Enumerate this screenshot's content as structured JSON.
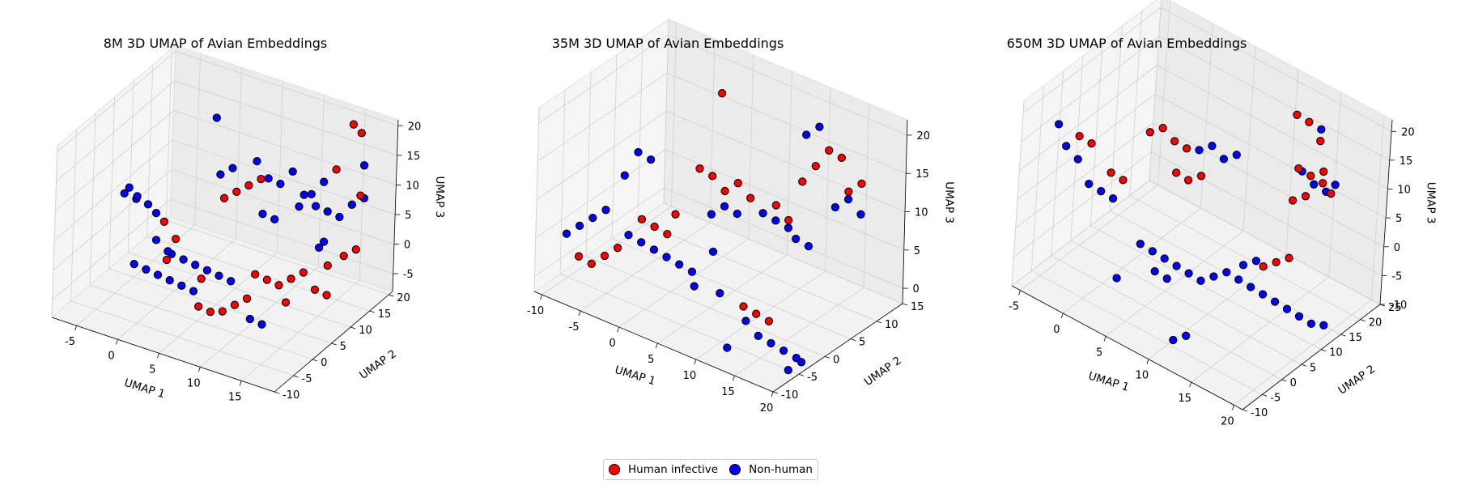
{
  "chart_data": [
    {
      "type": "scatter",
      "title": "8M 3D UMAP of Avian Embeddings",
      "xlabel": "UMAP 1",
      "ylabel": "UMAP 2",
      "zlabel": "UMAP 3",
      "xlim": [
        -8,
        19
      ],
      "ylim": [
        -10,
        21
      ],
      "zlim": [
        -8,
        21
      ],
      "xticks": [
        -5,
        0,
        5,
        10,
        15
      ],
      "yticks": [
        -10,
        -5,
        0,
        5,
        10,
        15,
        20
      ],
      "zticks": [
        -5,
        0,
        5,
        10,
        15,
        20
      ],
      "grid": true,
      "series": [
        {
          "name": "Human infective",
          "color": "#ff0000",
          "points": [
            [
              2,
              -3,
              9
            ],
            [
              3,
              -2,
              6
            ],
            [
              6,
              4,
              11
            ],
            [
              7,
              5,
              12
            ],
            [
              8,
              6,
              13
            ],
            [
              9,
              7,
              14
            ],
            [
              15,
              18,
              20
            ],
            [
              16,
              18,
              19
            ],
            [
              14,
              16,
              13
            ],
            [
              10,
              4,
              0
            ],
            [
              11,
              5,
              -1
            ],
            [
              12,
              6,
              -2
            ],
            [
              13,
              7,
              -1
            ],
            [
              14,
              8,
              0
            ],
            [
              16,
              10,
              1
            ],
            [
              17,
              12,
              2
            ],
            [
              18,
              13,
              3
            ],
            [
              15,
              9,
              -3
            ],
            [
              16,
              10,
              -4
            ],
            [
              6,
              -2,
              -4
            ],
            [
              7,
              -1,
              -5
            ],
            [
              8,
              0,
              -5
            ],
            [
              9,
              1,
              -4
            ],
            [
              10,
              2,
              -3
            ],
            [
              17,
              16,
              10
            ],
            [
              2,
              -2,
              2
            ],
            [
              4,
              3,
              -3
            ],
            [
              12,
              8,
              -6
            ]
          ]
        },
        {
          "name": "Non-human",
          "color": "#0000ff",
          "points": [
            [
              -2,
              -5,
              13
            ],
            [
              -1,
              -4,
              12
            ],
            [
              0,
              -3,
              11
            ],
            [
              1,
              -3,
              10
            ],
            [
              -1,
              -6,
              15
            ],
            [
              0,
              -6,
              14
            ],
            [
              2,
              -5,
              7
            ],
            [
              3,
              -4,
              5
            ],
            [
              3,
              -3,
              4
            ],
            [
              4,
              -2,
              3
            ],
            [
              5,
              -1,
              2
            ],
            [
              6,
              0,
              1
            ],
            [
              7,
              1,
              0
            ],
            [
              8,
              2,
              -1
            ],
            [
              5,
              5,
              14
            ],
            [
              6,
              6,
              15
            ],
            [
              8,
              8,
              16
            ],
            [
              9,
              9,
              13
            ],
            [
              10,
              10,
              12
            ],
            [
              11,
              11,
              14
            ],
            [
              12,
              12,
              10
            ],
            [
              13,
              13,
              8
            ],
            [
              14,
              14,
              7
            ],
            [
              15,
              15,
              6
            ],
            [
              16,
              16,
              8
            ],
            [
              17,
              17,
              9
            ],
            [
              13,
              15,
              11
            ],
            [
              12,
              14,
              9
            ],
            [
              11,
              13,
              7
            ],
            [
              9,
              11,
              5
            ],
            [
              8,
              10,
              6
            ],
            [
              16,
              19,
              13
            ],
            [
              3,
              8,
              21
            ],
            [
              -1,
              -4,
              1
            ],
            [
              0,
              -3,
              0
            ],
            [
              1,
              -2,
              -1
            ],
            [
              2,
              -1,
              -2
            ],
            [
              3,
              0,
              -3
            ],
            [
              4,
              1,
              -4
            ],
            [
              10,
              3,
              -7
            ],
            [
              11,
              4,
              -8
            ],
            [
              15,
              11,
              4
            ],
            [
              14,
              12,
              2
            ]
          ]
        }
      ]
    },
    {
      "type": "scatter",
      "title": "35M 3D UMAP of Avian Embeddings",
      "xlabel": "UMAP 1",
      "ylabel": "UMAP 2",
      "zlabel": "UMAP 3",
      "xlim": [
        -11,
        20
      ],
      "ylim": [
        -10,
        15
      ],
      "zlim": [
        -2,
        22
      ],
      "xticks": [
        -10,
        -5,
        0,
        5,
        10,
        15,
        20
      ],
      "yticks": [
        -10,
        -5,
        0,
        5,
        10,
        15
      ],
      "zticks": [
        0,
        5,
        10,
        15,
        20
      ],
      "grid": true,
      "series": [
        {
          "name": "Human infective",
          "color": "#ff0000",
          "points": [
            [
              -8,
              -6,
              2
            ],
            [
              -7,
              -5,
              1
            ],
            [
              -6,
              -4,
              2
            ],
            [
              -5,
              -3,
              3
            ],
            [
              -2,
              -3,
              8
            ],
            [
              -1,
              -2,
              7
            ],
            [
              0,
              -1,
              6
            ],
            [
              1,
              -1,
              9
            ],
            [
              2,
              2,
              14
            ],
            [
              3,
              3,
              13
            ],
            [
              4,
              4,
              11
            ],
            [
              5,
              5,
              12
            ],
            [
              6,
              6,
              10
            ],
            [
              8,
              8,
              9
            ],
            [
              10,
              10,
              12
            ],
            [
              11,
              11,
              14
            ],
            [
              12,
              12,
              16
            ],
            [
              13,
              13,
              15
            ],
            [
              14,
              13,
              11
            ],
            [
              15,
              14,
              12
            ],
            [
              12,
              -4,
              3
            ],
            [
              13,
              -3,
              2
            ],
            [
              14,
              -2,
              1
            ],
            [
              2,
              6,
              22
            ],
            [
              9,
              9,
              7
            ]
          ]
        },
        {
          "name": "Non-human",
          "color": "#0000ff",
          "points": [
            [
              -9,
              -7,
              5
            ],
            [
              -8,
              -6,
              6
            ],
            [
              -7,
              -5,
              7
            ],
            [
              -6,
              -4,
              8
            ],
            [
              -3,
              -4,
              6
            ],
            [
              -2,
              -3,
              5
            ],
            [
              -1,
              -2,
              4
            ],
            [
              0,
              -1,
              3
            ],
            [
              1,
              0,
              2
            ],
            [
              2,
              1,
              1
            ],
            [
              3,
              0,
              0
            ],
            [
              3,
              3,
              8
            ],
            [
              4,
              4,
              9
            ],
            [
              5,
              5,
              8
            ],
            [
              7,
              7,
              8
            ],
            [
              8,
              8,
              7
            ],
            [
              9,
              9,
              6
            ],
            [
              10,
              9,
              5
            ],
            [
              11,
              10,
              4
            ],
            [
              13,
              12,
              9
            ],
            [
              14,
              13,
              10
            ],
            [
              15,
              14,
              8
            ],
            [
              11,
              9,
              19
            ],
            [
              12,
              10,
              20
            ],
            [
              -4,
              -1,
              15
            ],
            [
              -3,
              0,
              14
            ],
            [
              -5,
              -2,
              12
            ],
            [
              13,
              -5,
              2
            ],
            [
              14,
              -4,
              0
            ],
            [
              15,
              -3,
              -1
            ],
            [
              16,
              -2,
              -2
            ],
            [
              17,
              -1,
              -3
            ],
            [
              17,
              0,
              -4
            ],
            [
              16,
              -1,
              -5
            ],
            [
              12,
              -7,
              -1
            ],
            [
              5,
              2,
              -1
            ],
            [
              4,
              2,
              4
            ]
          ]
        }
      ]
    },
    {
      "type": "scatter",
      "title": "650M 3D UMAP of Avian Embeddings",
      "xlabel": "UMAP 1",
      "ylabel": "UMAP 2",
      "zlabel": "UMAP 3",
      "xlim": [
        -6,
        21
      ],
      "ylim": [
        -10,
        25
      ],
      "zlim": [
        -10,
        22
      ],
      "xticks": [
        -5,
        0,
        5,
        10,
        15,
        20
      ],
      "yticks": [
        -10,
        -5,
        0,
        5,
        10,
        15,
        20,
        25
      ],
      "zticks": [
        -10,
        -5,
        0,
        5,
        10,
        15,
        20
      ],
      "grid": true,
      "series": [
        {
          "name": "Human infective",
          "color": "#ff0000",
          "points": [
            [
              -2,
              -4,
              16
            ],
            [
              -1,
              -3,
              15
            ],
            [
              1,
              -2,
              11
            ],
            [
              2,
              -1,
              10
            ],
            [
              3,
              3,
              17
            ],
            [
              4,
              4,
              18
            ],
            [
              5,
              5,
              16
            ],
            [
              6,
              6,
              15
            ],
            [
              5,
              6,
              10
            ],
            [
              6,
              7,
              9
            ],
            [
              7,
              8,
              10
            ],
            [
              14,
              16,
              22
            ],
            [
              15,
              17,
              21
            ],
            [
              16,
              18,
              18
            ],
            [
              15,
              15,
              14
            ],
            [
              16,
              16,
              13
            ],
            [
              17,
              17,
              12
            ],
            [
              18,
              17,
              11
            ],
            [
              16,
              15,
              10
            ],
            [
              15,
              14,
              9
            ],
            [
              13,
              12,
              -3
            ],
            [
              14,
              13,
              -2
            ],
            [
              15,
              14,
              -1
            ],
            [
              17,
              17,
              14
            ]
          ]
        },
        {
          "name": "Non-human",
          "color": "#0000ff",
          "points": [
            [
              -4,
              -5,
              17
            ],
            [
              -3,
              -5,
              14
            ],
            [
              -2,
              -4,
              12
            ],
            [
              -1,
              -3,
              8
            ],
            [
              0,
              -2,
              7
            ],
            [
              1,
              -1,
              6
            ],
            [
              7,
              7,
              15
            ],
            [
              8,
              8,
              16
            ],
            [
              9,
              9,
              14
            ],
            [
              10,
              10,
              15
            ],
            [
              15,
              16,
              13
            ],
            [
              16,
              17,
              11
            ],
            [
              17,
              18,
              10
            ],
            [
              18,
              18,
              12
            ],
            [
              16,
              18,
              20
            ],
            [
              4,
              0,
              0
            ],
            [
              5,
              1,
              -1
            ],
            [
              6,
              2,
              -2
            ],
            [
              7,
              3,
              -3
            ],
            [
              8,
              4,
              -4
            ],
            [
              5,
              2,
              -5
            ],
            [
              6,
              3,
              -6
            ],
            [
              9,
              5,
              -5
            ],
            [
              10,
              6,
              -4
            ],
            [
              11,
              7,
              -3
            ],
            [
              12,
              8,
              -4
            ],
            [
              13,
              9,
              -5
            ],
            [
              14,
              10,
              -6
            ],
            [
              15,
              11,
              -7
            ],
            [
              16,
              12,
              -8
            ],
            [
              17,
              13,
              -9
            ],
            [
              18,
              14,
              -10
            ],
            [
              19,
              15,
              -10
            ],
            [
              12,
              9,
              -2
            ],
            [
              13,
              10,
              -1
            ],
            [
              2,
              -1,
              -7
            ],
            [
              8,
              1,
              -14
            ],
            [
              9,
              2,
              -13
            ]
          ]
        }
      ]
    }
  ],
  "legend": {
    "items": [
      {
        "label": "Human infective",
        "color": "#ff0000"
      },
      {
        "label": "Non-human",
        "color": "#0000ff"
      }
    ]
  }
}
